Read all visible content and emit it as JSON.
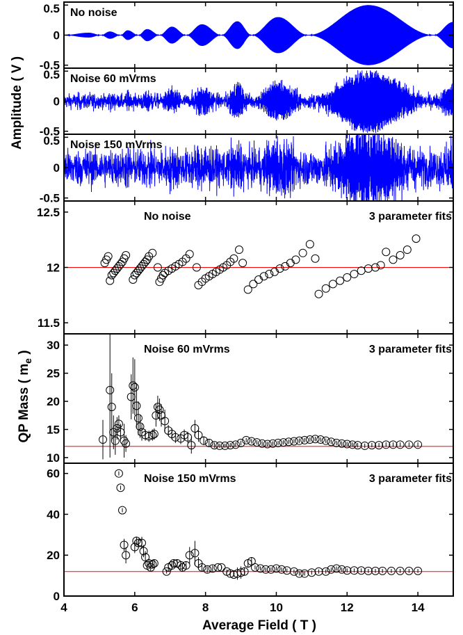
{
  "chart_data": [
    {
      "type": "line",
      "panel": "signal-a",
      "annotation": "No noise",
      "ylim": [
        -0.55,
        0.55
      ],
      "yticks": [
        "0.5",
        "0",
        "-0.5"
      ],
      "series_color": "#0000ff",
      "envelope": [
        {
          "x": 4.0,
          "amp": 0.0
        },
        {
          "x": 4.7,
          "amp": 0.04
        },
        {
          "x": 5.05,
          "amp": 0.0
        },
        {
          "x": 5.3,
          "amp": 0.06
        },
        {
          "x": 5.6,
          "amp": 0.0
        },
        {
          "x": 5.8,
          "amp": 0.08
        },
        {
          "x": 6.1,
          "amp": 0.0
        },
        {
          "x": 6.35,
          "amp": 0.1
        },
        {
          "x": 6.7,
          "amp": 0.0
        },
        {
          "x": 7.05,
          "amp": 0.14
        },
        {
          "x": 7.45,
          "amp": 0.0
        },
        {
          "x": 7.9,
          "amp": 0.18
        },
        {
          "x": 8.45,
          "amp": 0.0
        },
        {
          "x": 8.9,
          "amp": 0.23
        },
        {
          "x": 9.3,
          "amp": 0.0
        },
        {
          "x": 10.05,
          "amp": 0.3
        },
        {
          "x": 10.9,
          "amp": 0.0
        },
        {
          "x": 12.6,
          "amp": 0.5
        },
        {
          "x": 14.45,
          "amp": 0.0
        },
        {
          "x": 15.0,
          "amp": 0.22
        }
      ]
    },
    {
      "type": "line",
      "panel": "signal-b",
      "annotation": "Noise 60 mVrms",
      "ylim": [
        -0.55,
        0.55
      ],
      "yticks": [
        "0.5",
        "0",
        "-0.5"
      ],
      "series_color": "#0000ff",
      "noise_rms": 0.06
    },
    {
      "type": "line",
      "panel": "signal-c",
      "annotation": "Noise 150 mVrms",
      "ylim": [
        -0.55,
        0.55
      ],
      "yticks": [
        "0.5",
        "0",
        "-0.5"
      ],
      "series_color": "#0000ff",
      "noise_rms": 0.15
    },
    {
      "type": "scatter",
      "panel": "mass-a",
      "annotation": "No noise",
      "annotation_right": "3 parameter fits",
      "ylim": [
        11.4,
        12.6
      ],
      "yticks": [
        12.5,
        12,
        11.5
      ],
      "reference_line": 12,
      "reference_color": "#ff0000",
      "points": [
        [
          5.15,
          12.04
        ],
        [
          5.2,
          12.07
        ],
        [
          5.25,
          12.1
        ],
        [
          5.3,
          11.88
        ],
        [
          5.35,
          11.93
        ],
        [
          5.4,
          11.95
        ],
        [
          5.45,
          11.97
        ],
        [
          5.5,
          11.99
        ],
        [
          5.55,
          12.01
        ],
        [
          5.6,
          12.03
        ],
        [
          5.65,
          12.05
        ],
        [
          5.7,
          12.08
        ],
        [
          5.75,
          12.11
        ],
        [
          5.95,
          11.89
        ],
        [
          6.0,
          11.93
        ],
        [
          6.05,
          11.95
        ],
        [
          6.1,
          11.97
        ],
        [
          6.15,
          11.99
        ],
        [
          6.2,
          12.01
        ],
        [
          6.25,
          12.03
        ],
        [
          6.3,
          12.05
        ],
        [
          6.35,
          12.07
        ],
        [
          6.4,
          12.1
        ],
        [
          6.5,
          12.13
        ],
        [
          6.65,
          12.0
        ],
        [
          6.7,
          11.87
        ],
        [
          6.75,
          11.9
        ],
        [
          6.8,
          11.93
        ],
        [
          6.85,
          11.95
        ],
        [
          6.95,
          11.97
        ],
        [
          7.05,
          11.99
        ],
        [
          7.15,
          12.01
        ],
        [
          7.25,
          12.03
        ],
        [
          7.35,
          12.05
        ],
        [
          7.45,
          12.08
        ],
        [
          7.55,
          12.12
        ],
        [
          7.75,
          12.0
        ],
        [
          7.8,
          11.84
        ],
        [
          7.9,
          11.87
        ],
        [
          8.0,
          11.9
        ],
        [
          8.1,
          11.92
        ],
        [
          8.2,
          11.94
        ],
        [
          8.3,
          11.96
        ],
        [
          8.4,
          11.98
        ],
        [
          8.5,
          12.0
        ],
        [
          8.6,
          12.02
        ],
        [
          8.7,
          12.05
        ],
        [
          8.8,
          12.08
        ],
        [
          8.95,
          12.16
        ],
        [
          9.05,
          12.04
        ],
        [
          9.2,
          11.8
        ],
        [
          9.35,
          11.85
        ],
        [
          9.5,
          11.89
        ],
        [
          9.65,
          11.92
        ],
        [
          9.8,
          11.94
        ],
        [
          9.95,
          11.96
        ],
        [
          10.1,
          11.99
        ],
        [
          10.25,
          12.01
        ],
        [
          10.4,
          12.04
        ],
        [
          10.55,
          12.07
        ],
        [
          10.75,
          12.13
        ],
        [
          10.95,
          12.21
        ],
        [
          11.1,
          12.08
        ],
        [
          11.2,
          11.76
        ],
        [
          11.4,
          11.81
        ],
        [
          11.6,
          11.85
        ],
        [
          11.8,
          11.88
        ],
        [
          12.0,
          11.91
        ],
        [
          12.2,
          11.94
        ],
        [
          12.4,
          11.97
        ],
        [
          12.6,
          11.99
        ],
        [
          12.8,
          12.0
        ],
        [
          12.95,
          12.02
        ],
        [
          13.1,
          12.14
        ],
        [
          13.3,
          12.07
        ],
        [
          13.5,
          12.11
        ],
        [
          13.7,
          12.16
        ],
        [
          13.95,
          12.26
        ]
      ]
    },
    {
      "type": "scatter",
      "panel": "mass-b",
      "annotation": "Noise 60 mVrms",
      "annotation_right": "3 parameter fits",
      "ylim": [
        9,
        32
      ],
      "yticks": [
        30,
        25,
        20,
        15,
        10
      ],
      "reference_line": 12,
      "reference_color": "#ff0000",
      "points": [
        [
          5.1,
          13.2,
          3.5
        ],
        [
          5.3,
          22,
          12
        ],
        [
          5.35,
          19,
          6
        ],
        [
          5.4,
          14.5,
          3
        ],
        [
          5.45,
          13,
          2.5
        ],
        [
          5.5,
          15.2,
          2
        ],
        [
          5.55,
          16,
          1.5
        ],
        [
          5.6,
          14.5,
          1.5
        ],
        [
          5.7,
          13,
          3
        ],
        [
          5.75,
          12.5,
          1.5
        ],
        [
          5.9,
          20.8,
          4
        ],
        [
          5.95,
          22.8,
          5
        ],
        [
          6.0,
          22.5,
          5
        ],
        [
          6.05,
          19.2,
          4
        ],
        [
          6.1,
          17,
          3
        ],
        [
          6.15,
          15.5,
          2
        ],
        [
          6.2,
          14.5,
          1.5
        ],
        [
          6.3,
          14,
          1
        ],
        [
          6.4,
          13.8,
          1
        ],
        [
          6.5,
          14,
          1
        ],
        [
          6.55,
          14.2,
          1
        ],
        [
          6.6,
          17.5,
          2
        ],
        [
          6.65,
          19,
          2
        ],
        [
          6.7,
          18.5,
          2
        ],
        [
          6.75,
          17.5,
          2
        ],
        [
          6.85,
          16.5,
          2
        ],
        [
          6.95,
          14.8,
          1
        ],
        [
          7.05,
          14.2,
          1
        ],
        [
          7.15,
          13.6,
          1
        ],
        [
          7.3,
          13.4,
          1
        ],
        [
          7.4,
          14,
          1
        ],
        [
          7.5,
          13.6,
          1
        ],
        [
          7.6,
          12.2,
          1.5
        ],
        [
          7.7,
          15.2,
          1.5
        ],
        [
          7.8,
          14,
          1.2
        ],
        [
          7.95,
          13,
          0.8
        ],
        [
          8.1,
          12.6,
          0.6
        ],
        [
          8.25,
          12.2,
          0.5
        ],
        [
          8.4,
          12.1,
          0.4
        ],
        [
          8.55,
          12.1,
          0.4
        ],
        [
          8.7,
          12.2,
          0.4
        ],
        [
          8.85,
          12.3,
          0.4
        ],
        [
          9.0,
          12.6,
          0.4
        ],
        [
          9.15,
          13.1,
          0.4
        ],
        [
          9.3,
          12.9,
          0.4
        ],
        [
          9.45,
          12.7,
          0.4
        ],
        [
          9.6,
          12.5,
          0.4
        ],
        [
          9.75,
          12.4,
          0.4
        ],
        [
          9.9,
          12.5,
          0.4
        ],
        [
          10.05,
          12.6,
          0.4
        ],
        [
          10.2,
          12.7,
          0.4
        ],
        [
          10.35,
          12.8,
          0.4
        ],
        [
          10.5,
          12.9,
          0.4
        ],
        [
          10.65,
          13.0,
          0.4
        ],
        [
          10.8,
          13.1,
          0.4
        ],
        [
          10.95,
          13.2,
          0.4
        ],
        [
          11.1,
          13.3,
          0.4
        ],
        [
          11.25,
          13.2,
          0.4
        ],
        [
          11.4,
          13.0,
          0.4
        ],
        [
          11.55,
          12.8,
          0.4
        ],
        [
          11.7,
          12.6,
          0.4
        ],
        [
          11.85,
          12.5,
          0.4
        ],
        [
          12.0,
          12.4,
          0.4
        ],
        [
          12.15,
          12.3,
          0.4
        ],
        [
          12.3,
          12.2,
          0.4
        ],
        [
          12.5,
          12.1,
          0.4
        ],
        [
          12.7,
          12.2,
          0.4
        ],
        [
          12.9,
          12.2,
          0.4
        ],
        [
          13.1,
          12.3,
          0.4
        ],
        [
          13.3,
          12.3,
          0.4
        ],
        [
          13.5,
          12.3,
          0.4
        ],
        [
          13.75,
          12.3,
          0.4
        ],
        [
          14.0,
          12.3,
          0.4
        ]
      ]
    },
    {
      "type": "scatter",
      "panel": "mass-c",
      "annotation": "Noise 150 mVrms",
      "annotation_right": "3 parameter fits",
      "ylim": [
        0,
        65
      ],
      "yticks": [
        60,
        40,
        20,
        0
      ],
      "reference_line": 12,
      "reference_color": "#ff0000",
      "points": [
        [
          5.55,
          60,
          1
        ],
        [
          5.6,
          53,
          1
        ],
        [
          5.65,
          42,
          1
        ],
        [
          5.7,
          25,
          3
        ],
        [
          5.75,
          20,
          4
        ],
        [
          6.0,
          24,
          3
        ],
        [
          6.05,
          27,
          2
        ],
        [
          6.1,
          26,
          2
        ],
        [
          6.2,
          26,
          3
        ],
        [
          6.25,
          22,
          3
        ],
        [
          6.3,
          19,
          3
        ],
        [
          6.35,
          15,
          2
        ],
        [
          6.4,
          16,
          2
        ],
        [
          6.45,
          14,
          2
        ],
        [
          6.5,
          15.5,
          2
        ],
        [
          6.55,
          16,
          2
        ],
        [
          6.9,
          12,
          1
        ],
        [
          6.95,
          14,
          2
        ],
        [
          7.05,
          15,
          2
        ],
        [
          7.1,
          16,
          2
        ],
        [
          7.2,
          16,
          2
        ],
        [
          7.3,
          15,
          2
        ],
        [
          7.35,
          14,
          2
        ],
        [
          7.45,
          15,
          2
        ],
        [
          7.55,
          20,
          4
        ],
        [
          7.7,
          21,
          6
        ],
        [
          7.8,
          16,
          3
        ],
        [
          7.9,
          14,
          2
        ],
        [
          8.05,
          13,
          1.5
        ],
        [
          8.2,
          13.5,
          1.5
        ],
        [
          8.35,
          14,
          1
        ],
        [
          8.45,
          14,
          1
        ],
        [
          8.6,
          12,
          1
        ],
        [
          8.7,
          11,
          1
        ],
        [
          8.8,
          10.5,
          1
        ],
        [
          8.9,
          11,
          3
        ],
        [
          9.0,
          11.5,
          3
        ],
        [
          9.1,
          12,
          2
        ],
        [
          9.2,
          16,
          2
        ],
        [
          9.3,
          17,
          2
        ],
        [
          9.4,
          14,
          1
        ],
        [
          9.55,
          13.5,
          1
        ],
        [
          9.7,
          13,
          1
        ],
        [
          9.85,
          13,
          1
        ],
        [
          10.0,
          13.5,
          1
        ],
        [
          10.15,
          13,
          1
        ],
        [
          10.3,
          12.5,
          1
        ],
        [
          10.5,
          12,
          1
        ],
        [
          10.65,
          11,
          1
        ],
        [
          10.8,
          11,
          1
        ],
        [
          11.0,
          11.5,
          1
        ],
        [
          11.2,
          12,
          1
        ],
        [
          11.4,
          12,
          1
        ],
        [
          11.55,
          13,
          1
        ],
        [
          11.7,
          13.5,
          1
        ],
        [
          11.85,
          13,
          1
        ],
        [
          12.0,
          12.5,
          1
        ],
        [
          12.2,
          12.5,
          1
        ],
        [
          12.4,
          12.5,
          1
        ],
        [
          12.6,
          12.3,
          1
        ],
        [
          12.8,
          12.3,
          1
        ],
        [
          13.0,
          12.3,
          1
        ],
        [
          13.25,
          12.3,
          1
        ],
        [
          13.5,
          12.3,
          1
        ],
        [
          13.75,
          12.3,
          1
        ],
        [
          14.0,
          12.3,
          1
        ]
      ]
    }
  ],
  "x_axis": {
    "xlim": [
      4,
      15
    ],
    "ticks": [
      4,
      6,
      8,
      10,
      12,
      14
    ],
    "label": "Average Field ( T )"
  },
  "group_labels": {
    "amplitude": "Amplitude ( V )",
    "mass_prefix": "QP Mass ( m",
    "mass_sub": "e",
    "mass_suffix": " )"
  }
}
